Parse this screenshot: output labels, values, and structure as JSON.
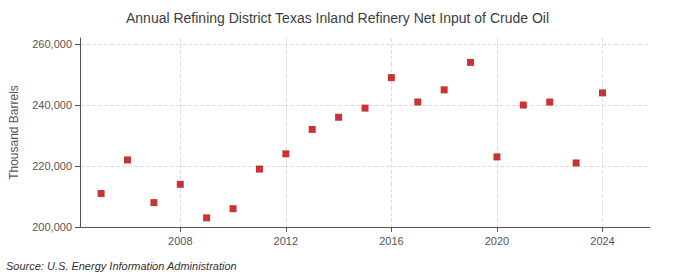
{
  "chart_data": {
    "type": "scatter",
    "title": "Annual Refining District Texas Inland Refinery Net Input of Crude Oil",
    "ylabel": "Thousand Barrels",
    "annotations": [
      "Source: U.S. Energy Information Administration"
    ],
    "x": [
      2005,
      2006,
      2007,
      2008,
      2009,
      2010,
      2011,
      2012,
      2013,
      2014,
      2015,
      2016,
      2017,
      2018,
      2019,
      2020,
      2021,
      2022,
      2023,
      2024
    ],
    "values": [
      211000,
      222000,
      208000,
      214000,
      203000,
      206000,
      219000,
      224000,
      232000,
      236000,
      239000,
      249000,
      241000,
      245000,
      254000,
      223000,
      240000,
      241000,
      221000,
      244000
    ],
    "color": "#bb0000",
    "marker": "square",
    "xlim": [
      2004.2,
      2025.8
    ],
    "xticks": [
      2008,
      2012,
      2016,
      2020,
      2024
    ],
    "ylim": [
      200000,
      262000
    ],
    "yticks": [
      {
        "value": 200000,
        "label": "200,000"
      },
      {
        "value": 220000,
        "label": "220,000"
      },
      {
        "value": 240000,
        "label": "240,000"
      },
      {
        "value": 260000,
        "label": "260,000"
      }
    ],
    "grid": true
  }
}
